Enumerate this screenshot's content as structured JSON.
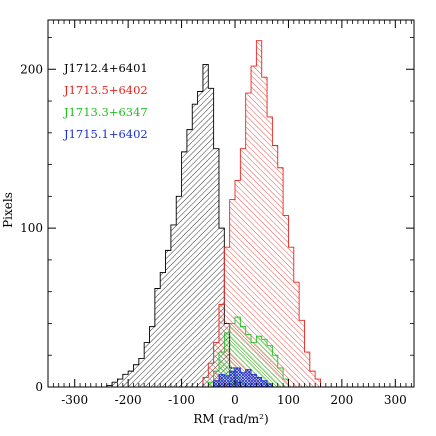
{
  "chart_data": {
    "type": "histogram",
    "title": "",
    "xlabel": "RM (rad/m²)",
    "ylabel": "Pixels",
    "xlim": [
      -350,
      335
    ],
    "ylim": [
      0,
      231
    ],
    "x_ticks": [
      "-300",
      "-200",
      "-100",
      "0",
      "100",
      "200",
      "300"
    ],
    "x_tick_values": [
      -300,
      -200,
      -100,
      0,
      100,
      200,
      300
    ],
    "y_ticks": [
      "0",
      "100",
      "200"
    ],
    "y_tick_values": [
      0,
      100,
      200
    ],
    "bin_width": 10,
    "legend_placement": "top-left",
    "series": [
      {
        "name": "J1712.4+6401",
        "color": "#000000",
        "hatch": "right",
        "bins": [
          [
            -240,
            1
          ],
          [
            -230,
            3
          ],
          [
            -220,
            5
          ],
          [
            -210,
            8
          ],
          [
            -200,
            10
          ],
          [
            -190,
            14
          ],
          [
            -180,
            18
          ],
          [
            -170,
            28
          ],
          [
            -160,
            38
          ],
          [
            -150,
            62
          ],
          [
            -140,
            72
          ],
          [
            -130,
            86
          ],
          [
            -120,
            102
          ],
          [
            -110,
            120
          ],
          [
            -100,
            148
          ],
          [
            -90,
            162
          ],
          [
            -80,
            178
          ],
          [
            -70,
            186
          ],
          [
            -60,
            203
          ],
          [
            -50,
            188
          ],
          [
            -40,
            150
          ],
          [
            -30,
            100
          ],
          [
            -20,
            40
          ],
          [
            -10,
            12
          ],
          [
            0,
            3
          ]
        ]
      },
      {
        "name": "J1713.5+6402",
        "color": "#e8251f",
        "hatch": "left",
        "bins": [
          [
            -60,
            6
          ],
          [
            -50,
            15
          ],
          [
            -40,
            28
          ],
          [
            -30,
            52
          ],
          [
            -20,
            88
          ],
          [
            -10,
            118
          ],
          [
            0,
            130
          ],
          [
            10,
            150
          ],
          [
            20,
            185
          ],
          [
            30,
            202
          ],
          [
            40,
            218
          ],
          [
            50,
            195
          ],
          [
            60,
            170
          ],
          [
            70,
            152
          ],
          [
            80,
            138
          ],
          [
            90,
            108
          ],
          [
            100,
            88
          ],
          [
            110,
            66
          ],
          [
            120,
            42
          ],
          [
            130,
            22
          ],
          [
            140,
            10
          ],
          [
            150,
            5
          ]
        ]
      },
      {
        "name": "J1713.3+6347",
        "color": "#22c022",
        "hatch": "left",
        "bins": [
          [
            -50,
            3
          ],
          [
            -40,
            10
          ],
          [
            -30,
            22
          ],
          [
            -20,
            34
          ],
          [
            -10,
            40
          ],
          [
            0,
            44
          ],
          [
            10,
            38
          ],
          [
            20,
            33
          ],
          [
            30,
            28
          ],
          [
            40,
            32
          ],
          [
            50,
            30
          ],
          [
            60,
            26
          ],
          [
            70,
            20
          ],
          [
            80,
            12
          ],
          [
            90,
            5
          ]
        ]
      },
      {
        "name": "J1715.1+6402",
        "color": "#1c2fd6",
        "hatch": "cross",
        "bins": [
          [
            -40,
            4
          ],
          [
            -30,
            8
          ],
          [
            -20,
            7
          ],
          [
            -10,
            10
          ],
          [
            0,
            12
          ],
          [
            10,
            9
          ],
          [
            20,
            11
          ],
          [
            30,
            8
          ],
          [
            40,
            6
          ],
          [
            50,
            4
          ],
          [
            60,
            2
          ]
        ]
      }
    ]
  }
}
